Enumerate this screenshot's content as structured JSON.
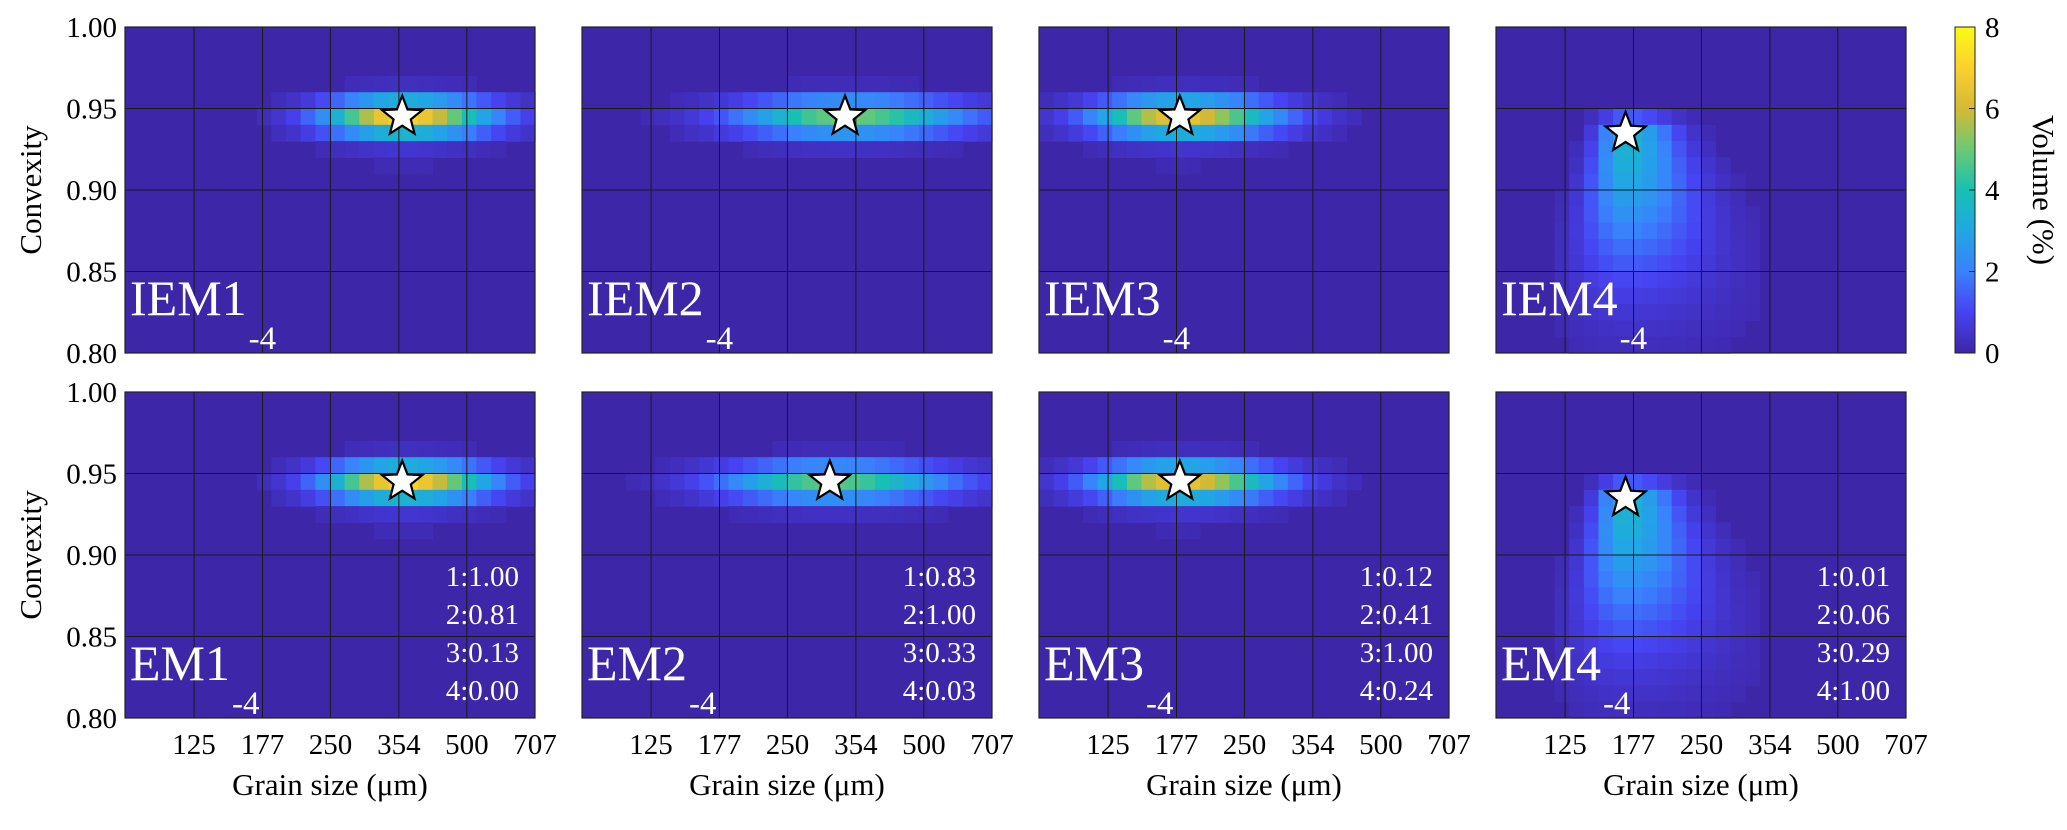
{
  "figure": {
    "colorbar": {
      "label": "Volume (%)",
      "range": [
        0,
        8
      ],
      "ticks": [
        "0",
        "2",
        "4",
        "6",
        "8"
      ],
      "colormap": [
        "#3e26a8",
        "#4743f2",
        "#3a81fd",
        "#20a7e4",
        "#18c0b3",
        "#6cc973",
        "#d4ba35",
        "#fdd02d",
        "#f9fb15"
      ]
    },
    "grid_color": "#1a1a1a",
    "background_color": "#3e26a8"
  },
  "chart_data": [
    {
      "type": "heatmap",
      "label": "IEM1",
      "subscript": "-4",
      "row": 0,
      "col": 0,
      "xlabel": "",
      "ylabel": "Convexity",
      "x_scale": "log",
      "xlim": [
        88,
        707
      ],
      "ylim": [
        0.8,
        1.0
      ],
      "x_ticks": [
        "125",
        "177",
        "250",
        "354",
        "500",
        "707"
      ],
      "y_ticks": [
        "0.80",
        "0.85",
        "0.90",
        "0.95",
        "1.00"
      ],
      "mode": {
        "grain_size": 360,
        "convexity": 0.945
      },
      "peak_volume": 7.0,
      "spread": 1.0,
      "ratios": []
    },
    {
      "type": "heatmap",
      "label": "IEM2",
      "subscript": "-4",
      "row": 0,
      "col": 1,
      "xlabel": "",
      "ylabel": "",
      "x_scale": "log",
      "xlim": [
        88,
        707
      ],
      "ylim": [
        0.8,
        1.0
      ],
      "x_ticks": [
        "125",
        "177",
        "250",
        "354",
        "500",
        "707"
      ],
      "y_ticks": [
        "0.80",
        "0.85",
        "0.90",
        "0.95",
        "1.00"
      ],
      "mode": {
        "grain_size": 335,
        "convexity": 0.945
      },
      "peak_volume": 5.0,
      "spread": 1.4,
      "ratios": []
    },
    {
      "type": "heatmap",
      "label": "IEM3",
      "subscript": "-4",
      "row": 0,
      "col": 2,
      "xlabel": "",
      "ylabel": "",
      "x_scale": "log",
      "xlim": [
        88,
        707
      ],
      "ylim": [
        0.8,
        1.0
      ],
      "x_ticks": [
        "125",
        "177",
        "250",
        "354",
        "500",
        "707"
      ],
      "y_ticks": [
        "0.80",
        "0.85",
        "0.90",
        "0.95",
        "1.00"
      ],
      "mode": {
        "grain_size": 180,
        "convexity": 0.945
      },
      "peak_volume": 6.5,
      "spread": 1.1,
      "ratios": []
    },
    {
      "type": "heatmap",
      "label": "IEM4",
      "subscript": "-4",
      "row": 0,
      "col": 3,
      "xlabel": "",
      "ylabel": "",
      "x_scale": "log",
      "xlim": [
        88,
        707
      ],
      "ylim": [
        0.8,
        1.0
      ],
      "x_ticks": [
        "125",
        "177",
        "250",
        "354",
        "500",
        "707"
      ],
      "y_ticks": [
        "0.80",
        "0.85",
        "0.90",
        "0.95",
        "1.00"
      ],
      "mode": {
        "grain_size": 170,
        "convexity": 0.935
      },
      "peak_volume": 3.5,
      "spread": 1.0,
      "tail": true,
      "ratios": []
    },
    {
      "type": "heatmap",
      "label": "EM1",
      "subscript": "-4",
      "row": 1,
      "col": 0,
      "xlabel": "Grain size (μm)",
      "ylabel": "Convexity",
      "x_scale": "log",
      "xlim": [
        88,
        707
      ],
      "ylim": [
        0.8,
        1.0
      ],
      "x_ticks": [
        "125",
        "177",
        "250",
        "354",
        "500",
        "707"
      ],
      "y_ticks": [
        "0.80",
        "0.85",
        "0.90",
        "0.95",
        "1.00"
      ],
      "mode": {
        "grain_size": 360,
        "convexity": 0.945
      },
      "peak_volume": 7.0,
      "spread": 1.0,
      "ratios": [
        "1:1.00",
        "2:0.81",
        "3:0.13",
        "4:0.00"
      ]
    },
    {
      "type": "heatmap",
      "label": "EM2",
      "subscript": "-4",
      "row": 1,
      "col": 1,
      "xlabel": "Grain size (μm)",
      "ylabel": "",
      "x_scale": "log",
      "xlim": [
        88,
        707
      ],
      "ylim": [
        0.8,
        1.0
      ],
      "x_ticks": [
        "125",
        "177",
        "250",
        "354",
        "500",
        "707"
      ],
      "y_ticks": [
        "0.80",
        "0.85",
        "0.90",
        "0.95",
        "1.00"
      ],
      "mode": {
        "grain_size": 310,
        "convexity": 0.945
      },
      "peak_volume": 4.8,
      "spread": 1.4,
      "ratios": [
        "1:0.83",
        "2:1.00",
        "3:0.33",
        "4:0.03"
      ]
    },
    {
      "type": "heatmap",
      "label": "EM3",
      "subscript": "-4",
      "row": 1,
      "col": 2,
      "xlabel": "Grain size (μm)",
      "ylabel": "",
      "x_scale": "log",
      "xlim": [
        88,
        707
      ],
      "ylim": [
        0.8,
        1.0
      ],
      "x_ticks": [
        "125",
        "177",
        "250",
        "354",
        "500",
        "707"
      ],
      "y_ticks": [
        "0.80",
        "0.85",
        "0.90",
        "0.95",
        "1.00"
      ],
      "mode": {
        "grain_size": 180,
        "convexity": 0.945
      },
      "peak_volume": 6.5,
      "spread": 1.1,
      "ratios": [
        "1:0.12",
        "2:0.41",
        "3:1.00",
        "4:0.24"
      ]
    },
    {
      "type": "heatmap",
      "label": "EM4",
      "subscript": "-4",
      "row": 1,
      "col": 3,
      "xlabel": "Grain size (μm)",
      "ylabel": "",
      "x_scale": "log",
      "xlim": [
        88,
        707
      ],
      "ylim": [
        0.8,
        1.0
      ],
      "x_ticks": [
        "125",
        "177",
        "250",
        "354",
        "500",
        "707"
      ],
      "y_ticks": [
        "0.80",
        "0.85",
        "0.90",
        "0.95",
        "1.00"
      ],
      "mode": {
        "grain_size": 170,
        "convexity": 0.935
      },
      "peak_volume": 3.5,
      "spread": 1.0,
      "tail": true,
      "ratios": [
        "1:0.01",
        "2:0.06",
        "3:0.29",
        "4:1.00"
      ]
    }
  ]
}
